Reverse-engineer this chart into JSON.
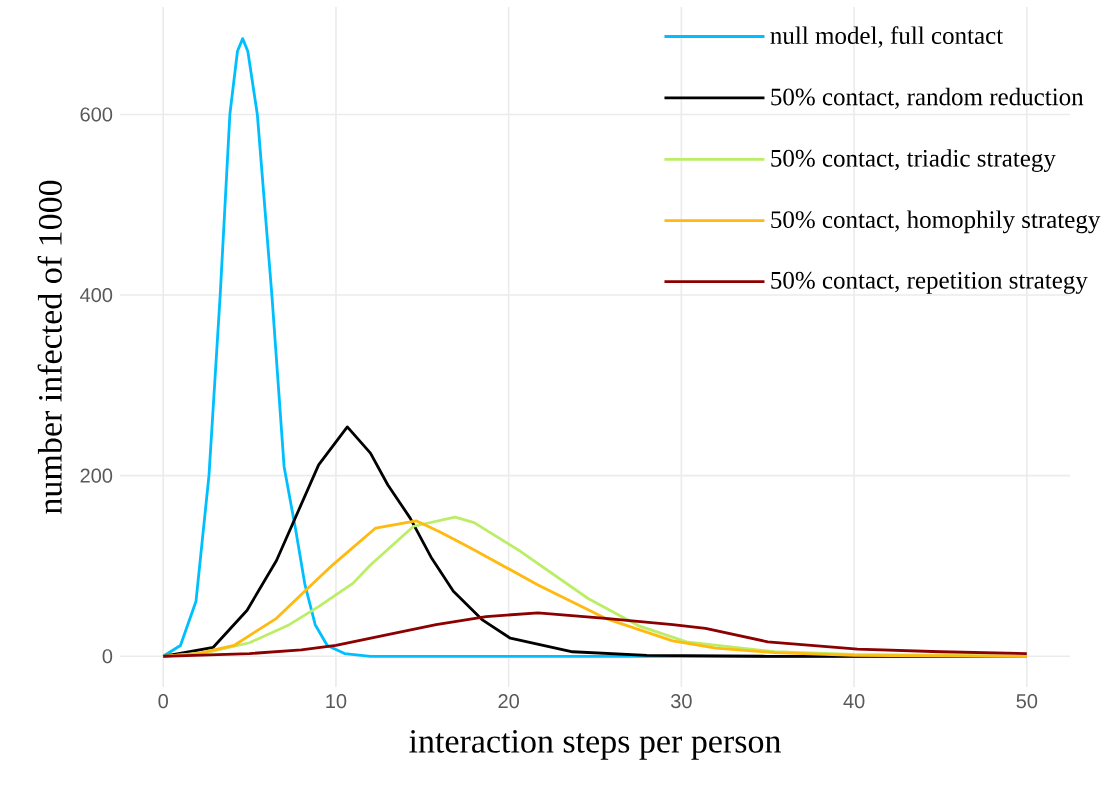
{
  "chart_data": {
    "type": "line",
    "xlabel": "interaction steps per person",
    "ylabel": "number infected of 1000",
    "xlim": [
      -2.5,
      52.5
    ],
    "ylim": [
      -34,
      719
    ],
    "xticks": [
      0,
      10,
      20,
      30,
      40,
      50
    ],
    "yticks": [
      0,
      200,
      400,
      600
    ],
    "grid": true,
    "legend": "top right",
    "series": [
      {
        "name": "null model, full contact",
        "color": "#00bfff",
        "x": [
          0,
          1,
          1.9,
          2.65,
          3.3,
          3.86,
          4.3,
          4.6,
          4.9,
          5.45,
          6.3,
          7,
          7.67,
          8.2,
          8.8,
          9.5,
          10.5,
          12,
          20,
          30,
          40,
          50
        ],
        "values": [
          0,
          12,
          61,
          200,
          400,
          600,
          670,
          684,
          670,
          600,
          398,
          210,
          140,
          80,
          35,
          12,
          3,
          0,
          0,
          0,
          0,
          0
        ]
      },
      {
        "name": "50% contact, random reduction",
        "color": "#000000",
        "x": [
          0,
          2.9,
          4.86,
          6.56,
          9,
          10.66,
          12,
          13,
          14.3,
          15.5,
          16.8,
          18.5,
          20.1,
          23.7,
          28,
          35,
          50
        ],
        "values": [
          0,
          10,
          51,
          106,
          212,
          254,
          225,
          190,
          153,
          110,
          72,
          40,
          20,
          5,
          1,
          0,
          0
        ]
      },
      {
        "name": "50% contact, triadic strategy",
        "color": "#bbee66",
        "x": [
          0,
          2.5,
          5,
          7.3,
          9,
          11,
          12,
          14.5,
          16.9,
          18,
          20.7,
          24.6,
          27.5,
          30.3,
          35.4,
          40,
          50
        ],
        "values": [
          0,
          4,
          15,
          35,
          55,
          81,
          101,
          144,
          154,
          148,
          116,
          64,
          34,
          16,
          5,
          2,
          0
        ]
      },
      {
        "name": "50% contact, homophily strategy",
        "color": "#ffb90f",
        "x": [
          0,
          2,
          4.1,
          6.56,
          8.3,
          9.8,
          12.3,
          14.64,
          16,
          17.8,
          21.7,
          25.6,
          29.5,
          32,
          35.4,
          40,
          50
        ],
        "values": [
          0,
          3,
          12,
          42,
          74,
          101,
          142,
          150,
          138,
          120,
          79,
          42,
          17,
          9,
          4,
          1,
          0
        ]
      },
      {
        "name": "50% contact, repetition strategy",
        "color": "#8b0000",
        "x": [
          0,
          5,
          8,
          10,
          13,
          15.8,
          18.7,
          21.7,
          25.6,
          29.5,
          31.4,
          35,
          40.2,
          45,
          50
        ],
        "values": [
          0,
          3,
          7,
          12,
          24,
          35,
          44,
          48,
          42,
          35,
          31,
          16,
          8,
          5,
          3
        ]
      }
    ]
  }
}
